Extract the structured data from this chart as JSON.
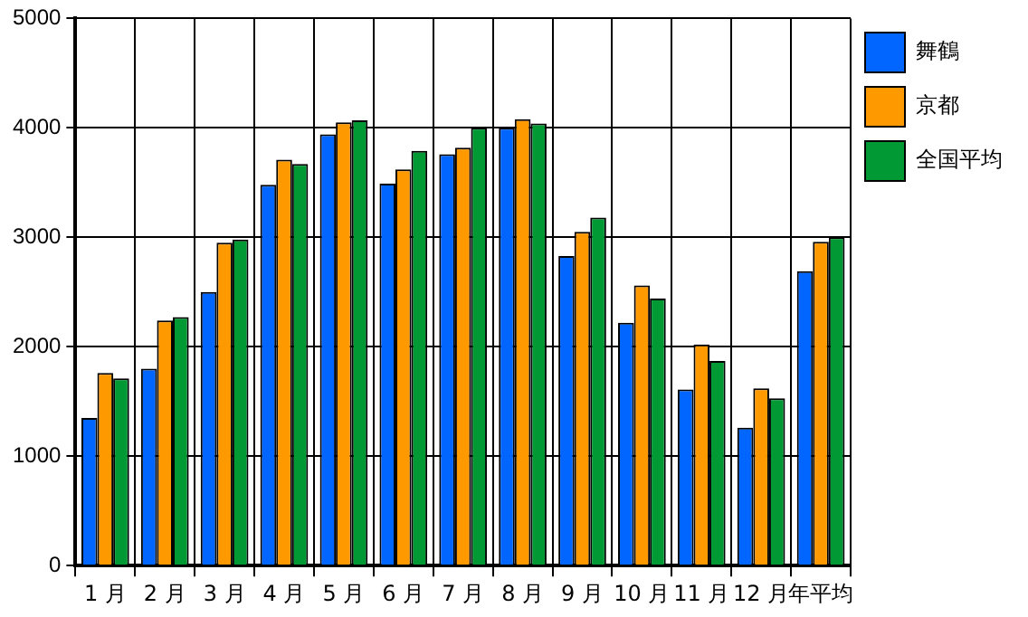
{
  "chart_data": {
    "type": "bar",
    "categories": [
      "1 月",
      "2 月",
      "3 月",
      "4 月",
      "5 月",
      "6 月",
      "7 月",
      "8 月",
      "9 月",
      "10 月",
      "11 月",
      "12 月",
      "年平均"
    ],
    "series": [
      {
        "name": "舞鶴",
        "color": "#0066ff",
        "values": [
          1350,
          1800,
          2500,
          3480,
          3940,
          3490,
          3760,
          4000,
          2830,
          2220,
          1610,
          1260,
          2690
        ]
      },
      {
        "name": "京都",
        "color": "#ff9900",
        "values": [
          1760,
          2240,
          2950,
          3710,
          4050,
          3620,
          3820,
          4080,
          3050,
          2560,
          2020,
          1620,
          2960
        ]
      },
      {
        "name": "全国平均",
        "color": "#009933",
        "values": [
          1710,
          2270,
          2980,
          3670,
          4070,
          3790,
          4000,
          4040,
          3180,
          2440,
          1870,
          1530,
          3000
        ]
      }
    ],
    "ylim": [
      0,
      5000
    ],
    "yticks": [
      0,
      1000,
      2000,
      3000,
      4000,
      5000
    ],
    "grid": true,
    "legend": "top right"
  }
}
